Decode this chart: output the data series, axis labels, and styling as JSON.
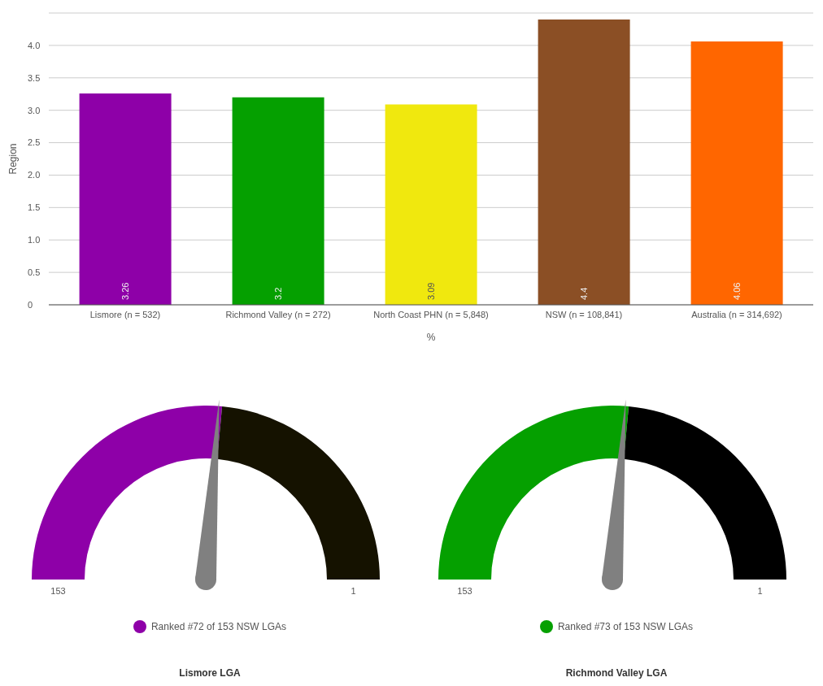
{
  "chart_data": [
    {
      "type": "bar",
      "xlabel": "%",
      "ylabel": "Region",
      "categories": [
        "Lismore (n = 532)",
        "Richmond Valley (n = 272)",
        "North Coast PHN (n = 5,848)",
        "NSW (n = 108,841)",
        "Australia (n = 314,692)"
      ],
      "values": [
        3.26,
        3.2,
        3.09,
        4.4,
        4.06
      ],
      "colors": [
        "#8e00a8",
        "#05a000",
        "#f0e80e",
        "#8b4f25",
        "#ff6600"
      ],
      "ylim": [
        0,
        4.5
      ],
      "yticks": [
        0,
        0.5,
        {
          "value": 1,
          "label": "1.0"
        },
        1.5,
        {
          "value": 2,
          "label": "2.0"
        },
        2.5,
        {
          "value": 3,
          "label": "3.0"
        },
        3.5,
        {
          "value": 4,
          "label": "4.0"
        }
      ],
      "grid": "y",
      "data_labels": true
    },
    {
      "type": "donut",
      "title": "Lismore LGA",
      "categories": [
        "Ranked #72 of 153 NSW LGAs",
        null
      ],
      "values": [
        53,
        47
      ],
      "colors": [
        "#8e00a8",
        "#151200"
      ],
      "needle": "Ranked #72 of 153 NSW LGAs",
      "annotations": [
        "153",
        "1"
      ],
      "legend": "bottom"
    },
    {
      "type": "donut",
      "title": "Richmond Valley LGA",
      "categories": [
        "Ranked #73 of 153 NSW LGAs",
        null
      ],
      "values": [
        53,
        47
      ],
      "colors": [
        "#05a000",
        "#000000"
      ],
      "needle": "Ranked #73 of 153 NSW LGAs",
      "annotations": [
        "153",
        "1"
      ],
      "legend": "bottom"
    }
  ]
}
